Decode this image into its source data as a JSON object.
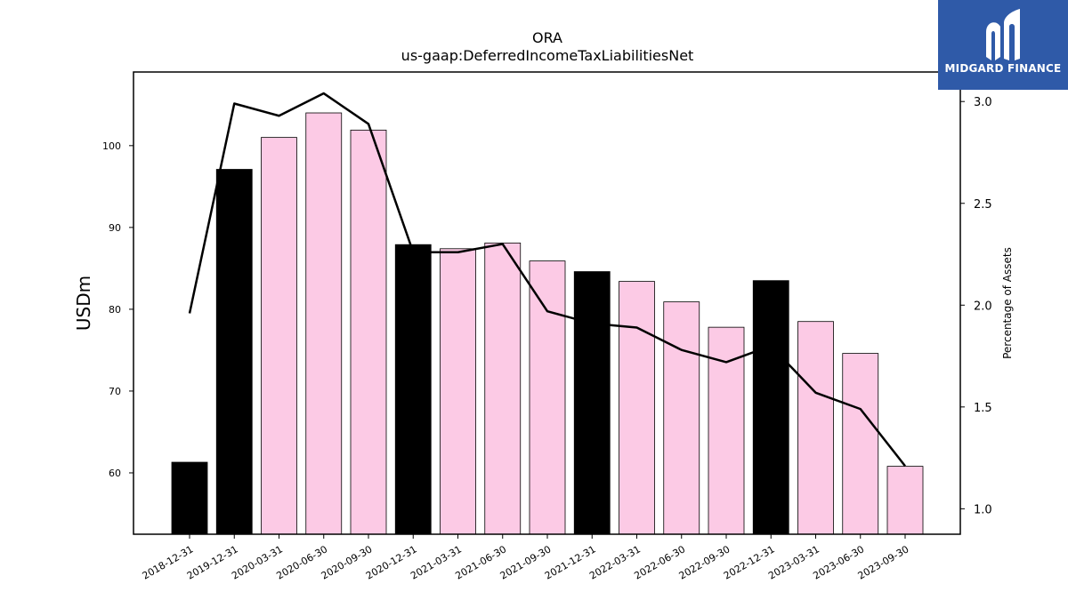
{
  "chart_data": {
    "type": "bar",
    "title": "ORA",
    "subtitle": "us-gaap:DeferredIncomeTaxLiabilitiesNet",
    "ylabel": "USDm",
    "ylabel_right": "Percentage of Assets",
    "categories": [
      "2018-12-31",
      "2019-12-31",
      "2020-03-31",
      "2020-06-30",
      "2020-09-30",
      "2020-12-31",
      "2021-03-31",
      "2021-06-30",
      "2021-09-30",
      "2021-12-31",
      "2022-03-31",
      "2022-06-30",
      "2022-09-30",
      "2022-12-31",
      "2023-03-31",
      "2023-06-30",
      "2023-09-30"
    ],
    "series": [
      {
        "type": "bar",
        "axis": "left",
        "values": [
          61.3,
          97.1,
          101.0,
          104.0,
          101.9,
          87.9,
          87.4,
          88.1,
          85.9,
          84.6,
          83.4,
          80.9,
          77.8,
          83.5,
          78.5,
          74.6,
          60.8
        ],
        "annual": [
          true,
          true,
          false,
          false,
          false,
          true,
          false,
          false,
          false,
          true,
          false,
          false,
          false,
          true,
          false,
          false,
          false
        ]
      },
      {
        "type": "line",
        "axis": "right",
        "values": [
          1.96,
          2.99,
          2.93,
          3.04,
          2.89,
          2.26,
          2.26,
          2.3,
          1.97,
          1.91,
          1.89,
          1.78,
          1.72,
          1.8,
          1.57,
          1.49,
          1.21
        ]
      }
    ],
    "ylim": [
      52.5,
      109
    ],
    "yticks": [
      60,
      70,
      80,
      90,
      100
    ],
    "ylim_right": [
      0.875,
      3.145
    ],
    "yticks_right": [
      "1.0",
      "1.5",
      "2.0",
      "2.5",
      "3.0"
    ],
    "colors": {
      "annual_bar": "#000000",
      "quarter_bar": "#fccae5",
      "line": "#000000"
    }
  },
  "logo": {
    "text": "MIDGARD FINANCE",
    "background": "#2f5aa8"
  }
}
